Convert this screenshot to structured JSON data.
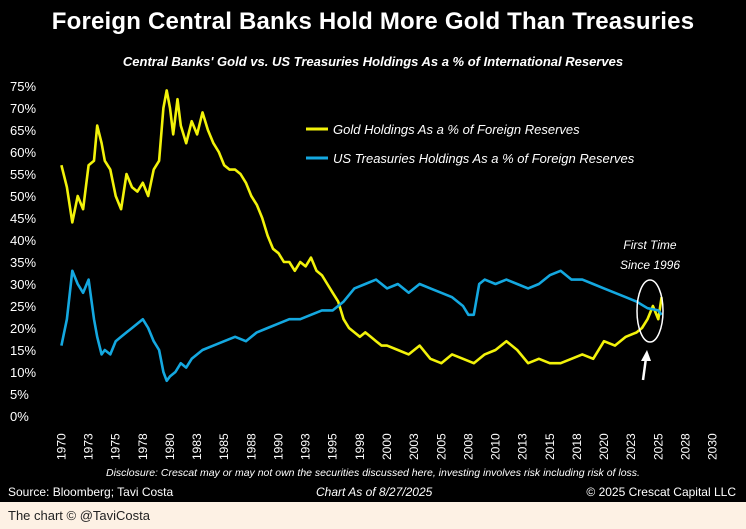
{
  "chart_data": {
    "type": "line",
    "title": "Foreign Central Banks Hold More Gold Than Treasuries",
    "subtitle": "Central Banks' Gold vs. US Treasuries Holdings As a % of International Reserves",
    "xlabel": "",
    "ylabel": "",
    "xlim": [
      1969.5,
      2030.5
    ],
    "ylim": [
      0,
      75
    ],
    "x_ticks": [
      "1970",
      "1973",
      "1975",
      "1978",
      "1980",
      "1983",
      "1985",
      "1988",
      "1990",
      "1993",
      "1995",
      "1998",
      "2000",
      "2003",
      "2005",
      "2008",
      "2010",
      "2013",
      "2015",
      "2018",
      "2020",
      "2023",
      "2025",
      "2028",
      "2030"
    ],
    "y_ticks": [
      "0%",
      "5%",
      "10%",
      "15%",
      "20%",
      "25%",
      "30%",
      "35%",
      "40%",
      "45%",
      "50%",
      "55%",
      "60%",
      "65%",
      "70%",
      "75%"
    ],
    "grid": false,
    "legend_position": "upper-right",
    "series": [
      {
        "name": "Gold Holdings As a % of Foreign Reserves",
        "color": "#f2f20a",
        "x": [
          1970,
          1970.5,
          1971,
          1971.5,
          1972,
          1972.5,
          1973,
          1973.3,
          1973.7,
          1974,
          1974.5,
          1975,
          1975.5,
          1976,
          1976.5,
          1977,
          1977.5,
          1978,
          1978.5,
          1979,
          1979.4,
          1979.7,
          1980,
          1980.3,
          1980.7,
          1981,
          1981.5,
          1982,
          1982.5,
          1983,
          1983.5,
          1984,
          1984.5,
          1985,
          1985.5,
          1986,
          1986.5,
          1987,
          1987.5,
          1988,
          1988.5,
          1989,
          1989.5,
          1990,
          1990.5,
          1991,
          1991.5,
          1992,
          1992.5,
          1993,
          1993.5,
          1994,
          1994.5,
          1995,
          1995.5,
          1996,
          1996.5,
          1997,
          1997.5,
          1998,
          1998.5,
          1999,
          1999.5,
          2000,
          2001,
          2002,
          2003,
          2004,
          2005,
          2006,
          2007,
          2008,
          2009,
          2010,
          2011,
          2012,
          2013,
          2014,
          2015,
          2016,
          2017,
          2018,
          2019,
          2020,
          2021,
          2022,
          2023,
          2023.5,
          2024,
          2024.5,
          2025,
          2025.3
        ],
        "y": [
          57,
          52,
          44,
          50,
          47,
          57,
          58,
          66,
          62,
          58,
          56,
          50,
          47,
          55,
          52,
          51,
          53,
          50,
          56,
          58,
          70,
          74,
          70,
          64,
          72,
          66,
          62,
          67,
          64,
          69,
          65,
          62,
          60,
          57,
          56,
          56,
          55,
          53,
          50,
          48,
          45,
          41,
          38,
          37,
          35,
          35,
          33,
          35,
          34,
          36,
          33,
          32,
          30,
          28,
          26,
          22,
          20,
          19,
          18,
          19,
          18,
          17,
          16,
          16,
          15,
          14,
          16,
          13,
          12,
          14,
          13,
          12,
          14,
          15,
          17,
          15,
          12,
          13,
          12,
          12,
          13,
          14,
          13,
          17,
          16,
          18,
          19,
          20,
          22,
          25,
          22,
          27
        ],
        "labels": {
          "annotation": "First Time Since 1996"
        }
      },
      {
        "name": "US Treasuries Holdings As a % of Foreign Reserves",
        "color": "#14a8e0",
        "x": [
          1970,
          1970.5,
          1971,
          1971.5,
          1972,
          1972.5,
          1973,
          1973.3,
          1973.7,
          1974,
          1974.5,
          1975,
          1975.5,
          1976,
          1976.5,
          1977,
          1977.5,
          1978,
          1978.5,
          1979,
          1979.4,
          1979.7,
          1980,
          1980.5,
          1981,
          1981.5,
          1982,
          1983,
          1984,
          1985,
          1986,
          1987,
          1988,
          1989,
          1990,
          1991,
          1992,
          1993,
          1994,
          1995,
          1996,
          1997,
          1998,
          1999,
          2000,
          2001,
          2002,
          2003,
          2004,
          2005,
          2006,
          2007,
          2007.5,
          2008,
          2008.5,
          2009,
          2010,
          2011,
          2012,
          2013,
          2014,
          2015,
          2016,
          2017,
          2018,
          2019,
          2020,
          2021,
          2022,
          2023,
          2024,
          2025,
          2025.3
        ],
        "y": [
          16,
          22,
          33,
          30,
          28,
          31,
          22,
          18,
          14,
          15,
          14,
          17,
          18,
          19,
          20,
          21,
          22,
          20,
          17,
          15,
          10,
          8,
          9,
          10,
          12,
          11,
          13,
          15,
          16,
          17,
          18,
          17,
          19,
          20,
          21,
          22,
          22,
          23,
          24,
          24,
          26,
          29,
          30,
          31,
          29,
          30,
          28,
          30,
          29,
          28,
          27,
          25,
          23,
          23,
          30,
          31,
          30,
          31,
          30,
          29,
          30,
          32,
          33,
          31,
          31,
          30,
          29,
          28,
          27,
          26,
          24.5,
          24,
          23
        ]
      }
    ]
  },
  "annotation": "First Time\nSince 1996",
  "annotation_line1": "First Time",
  "annotation_line2": "Since 1996",
  "disclosure": "Disclosure: Crescat may or may not own the securities discussed here, investing involves risk including risk of loss.",
  "source": "Source: Bloomberg; Tavi Costa",
  "chart_as_of": "Chart As of 8/27/2025",
  "copyright": "© 2025 Crescat Capital LLC",
  "caption": "The chart © @TaviCosta"
}
